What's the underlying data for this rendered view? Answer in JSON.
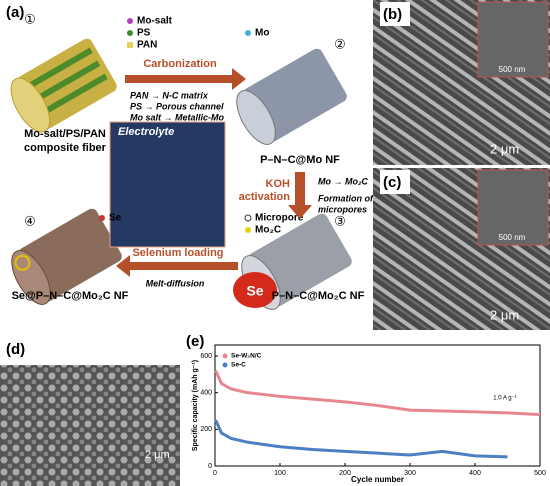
{
  "panel_a": {
    "label": "(a)",
    "steps": [
      "①",
      "②",
      "③",
      "④"
    ],
    "legend_precursor": [
      "Mo-salt",
      "PS",
      "PAN"
    ],
    "legend_mo": "Mo",
    "legend_pores": [
      "Micropore",
      "Mo₂C"
    ],
    "legend_se": "Se",
    "carbonization": {
      "title": "Carbonization",
      "notes": [
        "PAN → N-C matrix",
        "PS → Porous channel",
        "Mo salt → Metallic-Mo"
      ]
    },
    "fiber_1": [
      "Mo-salt/PS/PAN",
      "composite fiber"
    ],
    "fiber_2": "P–N–C@Mo NF",
    "fiber_3": "P–N–C@Mo₂C NF",
    "fiber_4": "Se@P–N–C@Mo₂C NF",
    "activation": {
      "title": [
        "KOH",
        "activation"
      ],
      "notes": [
        "Mo → Mo₂C",
        "Formation of",
        "micropores"
      ]
    },
    "selenium": {
      "title": "Selenium loading",
      "note": "Melt-diffusion",
      "cloud": "Se"
    },
    "electrolyte": "Electrolyte"
  },
  "panel_b": {
    "label": "(b)",
    "inset_scale": "500 nm",
    "scale": "2 μm"
  },
  "panel_c": {
    "label": "(c)",
    "inset_scale": "500 nm",
    "scale": "2 μm"
  },
  "panel_d": {
    "label": "(d)",
    "scale": "2 μm"
  },
  "chart_data": {
    "type": "line",
    "label": "(e)",
    "x_label": "Cycle number",
    "y_label": "Specific capacity (mAh g⁻¹)",
    "annotation": "1.0 A g⁻¹",
    "x": [
      1,
      10,
      25,
      50,
      100,
      150,
      200,
      250,
      300,
      350,
      400,
      450,
      500
    ],
    "series": [
      {
        "name": "Se-W₂N/C",
        "color": "#e7868f",
        "values": [
          520,
          450,
          420,
          400,
          380,
          365,
          350,
          330,
          305,
          300,
          295,
          290,
          280
        ]
      },
      {
        "name": "Se-C",
        "color": "#4a7fc4",
        "values": [
          250,
          180,
          150,
          130,
          105,
          90,
          80,
          70,
          60,
          80,
          55,
          50,
          null
        ]
      }
    ],
    "xlim": [
      0,
      500
    ],
    "xticks": [
      0,
      100,
      200,
      300,
      400,
      500
    ],
    "ylim": [
      0,
      660
    ],
    "yticks": [
      0,
      200,
      400,
      600
    ]
  }
}
